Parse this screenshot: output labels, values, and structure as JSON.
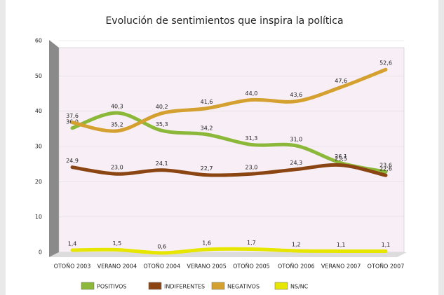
{
  "chart_data": {
    "type": "line",
    "title": "Evolución de sentimientos que inspira la política",
    "categories": [
      "OTOÑO 2003",
      "VERANO 2004",
      "OTOÑO 2004",
      "VERANO 2005",
      "OTOÑO 2005",
      "OTOÑO 2006",
      "VERANO 2007",
      "OTOÑO 2007"
    ],
    "series": [
      {
        "name": "POSITIVOS",
        "color": "#8cb83a",
        "values": [
          36.0,
          40.3,
          35.3,
          34.2,
          31.3,
          31.0,
          26.1,
          23.6
        ],
        "value_labels": [
          "36,0",
          "40,3",
          "35,3",
          "34,2",
          "31,3",
          "31,0",
          "26,1",
          "23,6"
        ]
      },
      {
        "name": "INDIFERENTES",
        "color": "#8b4513",
        "values": [
          24.9,
          23.0,
          24.1,
          22.7,
          23.0,
          24.3,
          25.5,
          22.6
        ],
        "value_labels": [
          "24,9",
          "23,0",
          "24,1",
          "22,7",
          "23,0",
          "24,3",
          "25,5",
          "22,6"
        ]
      },
      {
        "name": "NEGATIVOS",
        "color": "#d4a030",
        "values": [
          37.6,
          35.2,
          40.2,
          41.6,
          44.0,
          43.6,
          47.6,
          52.6
        ],
        "value_labels": [
          "37,6",
          "35,2",
          "40,2",
          "41,6",
          "44,0",
          "43,6",
          "47,6",
          "52,6"
        ]
      },
      {
        "name": "NS/NC",
        "color": "#e6e600",
        "values": [
          1.4,
          1.5,
          0.6,
          1.6,
          1.7,
          1.2,
          1.1,
          1.1
        ],
        "value_labels": [
          "1,4",
          "1,5",
          "0,6",
          "1,6",
          "1,7",
          "1,2",
          "1,1",
          "1,1"
        ]
      }
    ],
    "ylim": [
      0,
      60
    ],
    "yticks": [
      0,
      10,
      20,
      30,
      40,
      50,
      60
    ],
    "grid": true,
    "legend": "bottom"
  }
}
